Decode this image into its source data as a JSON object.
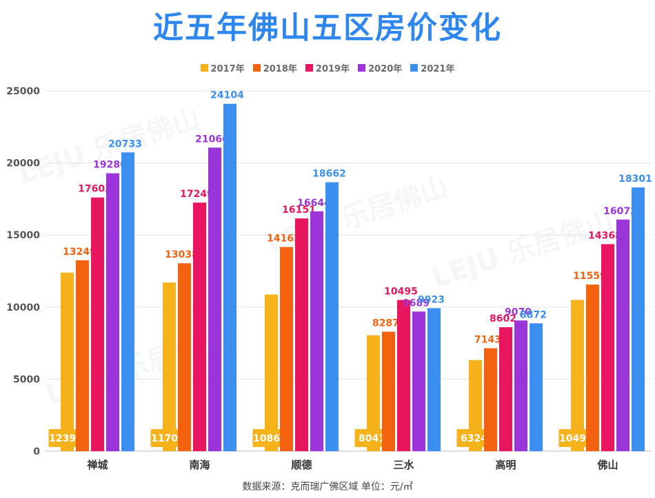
{
  "title": "近五年佛山五区房价变化",
  "footnote": "数据来源：克而瑞广佛区域 单位：元/㎡",
  "watermark": "LEJU 乐居佛山",
  "colors": {
    "title": "#2e86f0",
    "series": [
      "#f5b21a",
      "#f2620f",
      "#e8155f",
      "#9b35d9",
      "#3b8ff0"
    ]
  },
  "chart_data": {
    "type": "bar",
    "title": "近五年佛山五区房价变化",
    "categories": [
      "禅城",
      "南海",
      "顺德",
      "三水",
      "高明",
      "佛山"
    ],
    "series": [
      {
        "name": "2017年",
        "values": [
          12391,
          11700,
          10869,
          8041,
          6324,
          10494
        ]
      },
      {
        "name": "2018年",
        "values": [
          13249,
          13038,
          14165,
          8287,
          7143,
          11559
        ]
      },
      {
        "name": "2019年",
        "values": [
          17603,
          17249,
          16151,
          10495,
          8602,
          14368
        ]
      },
      {
        "name": "2020年",
        "values": [
          19286,
          21066,
          16644,
          9689,
          9070,
          16073
        ]
      },
      {
        "name": "2021年",
        "values": [
          20733,
          24104,
          18662,
          9923,
          8872,
          18301
        ]
      }
    ],
    "ylim": [
      0,
      25000
    ],
    "yticks": [
      0,
      5000,
      10000,
      15000,
      20000,
      25000
    ],
    "grid": true,
    "legend": "top-center",
    "xlabel": "",
    "ylabel": ""
  }
}
